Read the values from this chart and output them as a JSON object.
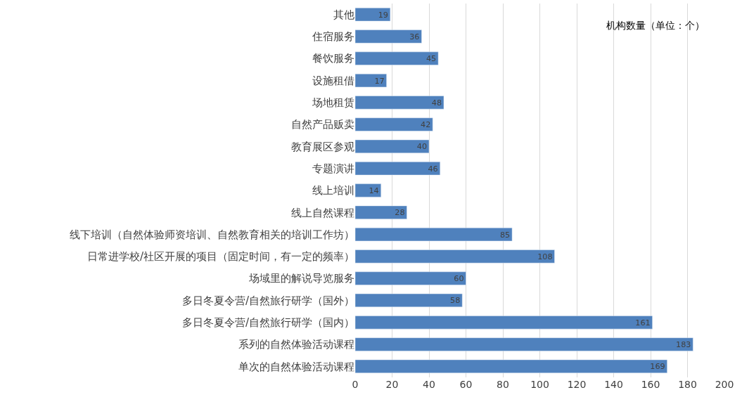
{
  "chart_data": {
    "type": "bar",
    "orientation": "horizontal",
    "categories": [
      "其他",
      "住宿服务",
      "餐饮服务",
      "设施租借",
      "场地租赁",
      "自然产品贩卖",
      "教育展区参观",
      "专题演讲",
      "线上培训",
      "线上自然课程",
      "线下培训（自然体验师资培训、自然教育相关的培训工作坊）",
      "日常进学校/社区开展的项目（固定时间，有一定的频率）",
      "场域里的解说导览服务",
      "多日冬夏令营/自然旅行研学（国外）",
      "多日冬夏令营/自然旅行研学（国内）",
      "系列的自然体验活动课程",
      "单次的自然体验活动课程"
    ],
    "values": [
      19,
      36,
      45,
      17,
      48,
      42,
      40,
      46,
      14,
      28,
      85,
      108,
      60,
      58,
      161,
      183,
      169
    ],
    "color": "#4f81bd",
    "data_labels": true,
    "xlim": [
      0,
      200
    ],
    "xticks": [
      0,
      20,
      40,
      60,
      80,
      100,
      120,
      140,
      160,
      180,
      200
    ],
    "grid": "x",
    "annotations": [
      "机构数量（单位：个）"
    ]
  }
}
